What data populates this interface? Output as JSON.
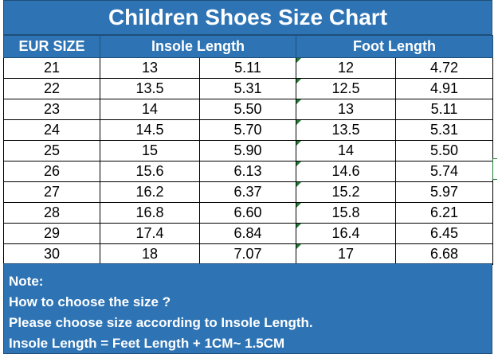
{
  "title": "Children Shoes Size Chart",
  "headers": [
    "EUR SIZE",
    "Insole Length",
    "Foot Length"
  ],
  "rows": [
    [
      "21",
      "13",
      "5.11",
      "12",
      "4.72"
    ],
    [
      "22",
      "13.5",
      "5.31",
      "12.5",
      "4.91"
    ],
    [
      "23",
      "14",
      "5.50",
      "13",
      "5.11"
    ],
    [
      "24",
      "14.5",
      "5.70",
      "13.5",
      "5.31"
    ],
    [
      "25",
      "15",
      "5.90",
      "14",
      "5.50"
    ],
    [
      "26",
      "15.6",
      "6.13",
      "14.6",
      "5.74"
    ],
    [
      "27",
      "16.2",
      "6.37",
      "15.2",
      "5.97"
    ],
    [
      "28",
      "16.8",
      "6.60",
      "15.8",
      "6.21"
    ],
    [
      "29",
      "17.4",
      "6.84",
      "16.4",
      "6.45"
    ],
    [
      "30",
      "18",
      "7.07",
      "17",
      "6.68"
    ]
  ],
  "notes": [
    "Note:",
    "How to choose the size ?",
    "Please choose size according to Insole Length.",
    "Insole Length = Feet Length + 1CM~ 1.5CM"
  ],
  "colors": {
    "header_bg": "#2e74b5",
    "header_text": "#ffffff",
    "cell_text": "#000000",
    "marker": "#1e7b34"
  }
}
